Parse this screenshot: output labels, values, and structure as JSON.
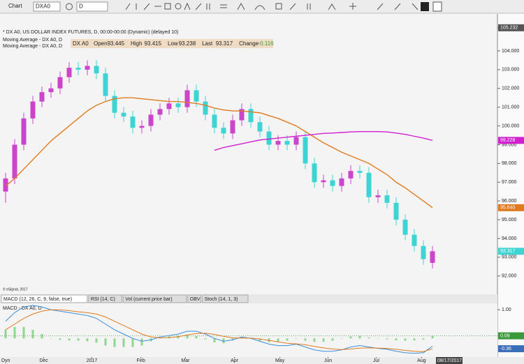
{
  "toolbar": {
    "window_title": "Chart",
    "symbol": "DXA0",
    "interval": "D"
  },
  "header": {
    "study_line": "* DX A0, US DOLLAR INDEX FUTURES, D, 00:00-00:00 (Dynamic) (delayed 10)",
    "overlay_lines": [
      "Moving Average - DX A0, D",
      "Moving Average - DX A0, D"
    ],
    "quote": {
      "symbol": "DX A0",
      "fields": [
        {
          "label": "Open",
          "value": "93.445"
        },
        {
          "label": "High",
          "value": "93.415"
        },
        {
          "label": "Low",
          "value": "93.238"
        },
        {
          "label": "Last",
          "value": "93.317"
        },
        {
          "label": "Change",
          "value": "-0.116"
        }
      ]
    },
    "copyright": "© eSignal, 2017"
  },
  "tabs": [
    "MACD (12, 26, C, 9, false, true)",
    "RSI (14, C)",
    "Vol (current price bar)",
    "OBV",
    "Stoch (14, 1, 3)"
  ],
  "footer": {
    "mode": "Dyn",
    "cursor_date": "08/17/2017"
  },
  "chart_data": [
    {
      "type": "candlestick",
      "up_color": "#cc44cc",
      "down_color": "#3fd4d4",
      "open": [
        96.5,
        97.2,
        99.0,
        100.4,
        101.3,
        101.8,
        102.0,
        102.6,
        103.1,
        103.0,
        103.2,
        102.8,
        101.6,
        100.7,
        100.5,
        99.9,
        100.0,
        100.6,
        100.9,
        101.2,
        101.0,
        101.9,
        101.3,
        100.6,
        99.9,
        99.6,
        100.3,
        100.9,
        100.2,
        99.7,
        99.0,
        99.2,
        99.0,
        99.4,
        98.0,
        97.0,
        97.1,
        96.8,
        97.2,
        97.6,
        97.5,
        96.2,
        96.3,
        95.9,
        95.0,
        94.2,
        93.6,
        92.7
      ],
      "high": [
        97.5,
        99.3,
        100.7,
        101.6,
        102.1,
        102.3,
        102.9,
        103.4,
        103.4,
        103.5,
        103.5,
        103.1,
        101.9,
        101.0,
        100.8,
        100.3,
        100.9,
        101.2,
        101.5,
        101.5,
        102.2,
        102.2,
        101.6,
        100.9,
        100.2,
        100.6,
        101.2,
        101.2,
        100.5,
        100.0,
        99.5,
        99.5,
        99.7,
        99.7,
        98.3,
        97.4,
        97.4,
        97.5,
        97.9,
        97.9,
        97.8,
        96.6,
        96.6,
        96.2,
        95.3,
        94.5,
        93.9,
        93.6
      ],
      "low": [
        95.9,
        96.9,
        98.7,
        100.1,
        101.0,
        101.5,
        101.7,
        102.3,
        102.7,
        102.7,
        102.5,
        101.3,
        100.4,
        100.2,
        99.6,
        99.6,
        99.7,
        100.3,
        100.6,
        100.7,
        100.7,
        101.0,
        100.3,
        99.6,
        99.3,
        99.3,
        100.0,
        99.9,
        99.4,
        98.7,
        98.7,
        98.7,
        98.7,
        97.7,
        96.7,
        96.7,
        96.5,
        96.5,
        96.9,
        97.2,
        95.9,
        95.9,
        95.6,
        94.7,
        93.9,
        93.3,
        92.6,
        92.4
      ],
      "close": [
        97.2,
        99.0,
        100.4,
        101.3,
        101.8,
        102.0,
        102.6,
        103.1,
        103.0,
        103.2,
        102.8,
        101.6,
        100.7,
        100.5,
        99.9,
        100.0,
        100.6,
        100.9,
        101.2,
        101.0,
        101.9,
        101.3,
        100.6,
        99.9,
        99.6,
        100.3,
        100.9,
        100.2,
        99.7,
        99.0,
        99.2,
        99.0,
        99.4,
        98.0,
        97.0,
        97.1,
        96.8,
        97.2,
        97.6,
        97.5,
        96.2,
        96.3,
        95.9,
        95.0,
        94.2,
        93.6,
        92.9,
        93.317
      ],
      "last_label": "93.317",
      "last_color": "#3fd4d4",
      "overlays": [
        {
          "color": "#e07a1f",
          "last_label": "95.640",
          "values": [
            96.8,
            97.2,
            97.7,
            98.2,
            98.7,
            99.2,
            99.6,
            100.0,
            100.4,
            100.8,
            101.1,
            101.3,
            101.45,
            101.5,
            101.5,
            101.45,
            101.4,
            101.35,
            101.3,
            101.3,
            101.25,
            101.2,
            101.1,
            100.95,
            100.85,
            100.8,
            100.8,
            100.75,
            100.7,
            100.55,
            100.4,
            100.2,
            100.0,
            99.7,
            99.4,
            99.1,
            98.85,
            98.6,
            98.4,
            98.2,
            98.0,
            97.7,
            97.4,
            97.0,
            96.7,
            96.35,
            96.0,
            95.64
          ]
        },
        {
          "color": "#d020d0",
          "last_label": "99.228",
          "values": [
            null,
            null,
            null,
            null,
            null,
            null,
            null,
            null,
            null,
            null,
            null,
            null,
            null,
            null,
            null,
            null,
            null,
            null,
            null,
            null,
            null,
            null,
            null,
            98.7,
            98.85,
            98.95,
            99.05,
            99.15,
            99.25,
            99.3,
            99.35,
            99.4,
            99.45,
            99.5,
            99.55,
            99.6,
            99.62,
            99.65,
            99.68,
            99.7,
            99.7,
            99.7,
            99.68,
            99.62,
            99.55,
            99.45,
            99.35,
            99.228
          ]
        }
      ],
      "ylim": [
        91.1,
        105.3
      ],
      "yticks": [
        {
          "value": 92,
          "label": "92.000"
        },
        {
          "value": 93,
          "label": "93.000"
        },
        {
          "value": 94,
          "label": "94.000"
        },
        {
          "value": 95,
          "label": "95.000"
        },
        {
          "value": 96,
          "label": "96.000"
        },
        {
          "value": 97,
          "label": "97.000"
        },
        {
          "value": 98,
          "label": "98.000"
        },
        {
          "value": 99,
          "label": "99.000"
        },
        {
          "value": 100,
          "label": "100.000"
        },
        {
          "value": 101,
          "label": "101.000"
        },
        {
          "value": 102,
          "label": "102.000"
        },
        {
          "value": 103,
          "label": "103.000"
        },
        {
          "value": 104,
          "label": "104.000"
        },
        {
          "value": 105.232,
          "label": "105.232"
        }
      ]
    },
    {
      "type": "line",
      "title": "MACD - DX A0, D",
      "series": [
        {
          "color": "#3a8fd8",
          "values": [
            0.6,
            0.9,
            1.1,
            1.15,
            1.1,
            1.0,
            0.95,
            0.9,
            0.85,
            0.8,
            0.7,
            0.5,
            0.3,
            0.15,
            0,
            -0.1,
            -0.05,
            0.05,
            0.1,
            0.15,
            0.25,
            0.25,
            0.15,
            0,
            -0.1,
            -0.05,
            0.05,
            0,
            -0.1,
            -0.2,
            -0.25,
            -0.25,
            -0.2,
            -0.3,
            -0.4,
            -0.45,
            -0.45,
            -0.4,
            -0.3,
            -0.25,
            -0.3,
            -0.35,
            -0.38,
            -0.45,
            -0.5,
            -0.52,
            -0.5,
            -0.27
          ]
        },
        {
          "color": "#e07a1f",
          "last_label": "-0.36",
          "values": [
            0.3,
            0.5,
            0.7,
            0.85,
            0.95,
            1.0,
            1.0,
            0.97,
            0.93,
            0.9,
            0.85,
            0.75,
            0.6,
            0.45,
            0.3,
            0.15,
            0.05,
            0.02,
            0.03,
            0.06,
            0.12,
            0.17,
            0.18,
            0.14,
            0.07,
            0.02,
            0.01,
            0.01,
            -0.02,
            -0.07,
            -0.12,
            -0.17,
            -0.19,
            -0.22,
            -0.28,
            -0.33,
            -0.37,
            -0.39,
            -0.37,
            -0.34,
            -0.33,
            -0.34,
            -0.35,
            -0.38,
            -0.42,
            -0.45,
            -0.46,
            -0.36
          ]
        }
      ],
      "histogram": {
        "color": "#8fd68f",
        "last_label": "0.09",
        "values": [
          0.3,
          0.4,
          0.4,
          0.3,
          0.15,
          0,
          -0.05,
          -0.07,
          -0.08,
          -0.1,
          -0.15,
          -0.25,
          -0.3,
          -0.3,
          -0.3,
          -0.25,
          -0.1,
          0.03,
          0.07,
          0.09,
          0.13,
          0.08,
          -0.03,
          -0.14,
          -0.17,
          -0.07,
          0.04,
          -0.01,
          -0.08,
          -0.13,
          -0.13,
          -0.08,
          -0.01,
          -0.08,
          -0.12,
          -0.12,
          -0.08,
          -0.01,
          0.07,
          0.09,
          0.03,
          -0.01,
          -0.03,
          -0.07,
          -0.08,
          -0.07,
          -0.04,
          0.09
        ]
      },
      "ylim": [
        -0.65,
        1.2
      ],
      "yticks": [
        {
          "value": 1,
          "label": "1.00"
        }
      ],
      "xticks": [
        {
          "value": 4.2,
          "label": "Dec"
        },
        {
          "value": 9.5,
          "label": "2017"
        },
        {
          "value": 14.9,
          "label": "Feb"
        },
        {
          "value": 19.8,
          "label": "Mar"
        },
        {
          "value": 25.2,
          "label": "Apr"
        },
        {
          "value": 30.2,
          "label": "May"
        },
        {
          "value": 35.5,
          "label": "Jun"
        },
        {
          "value": 40.8,
          "label": "Jul"
        },
        {
          "value": 45.8,
          "label": "Aug"
        }
      ]
    }
  ]
}
